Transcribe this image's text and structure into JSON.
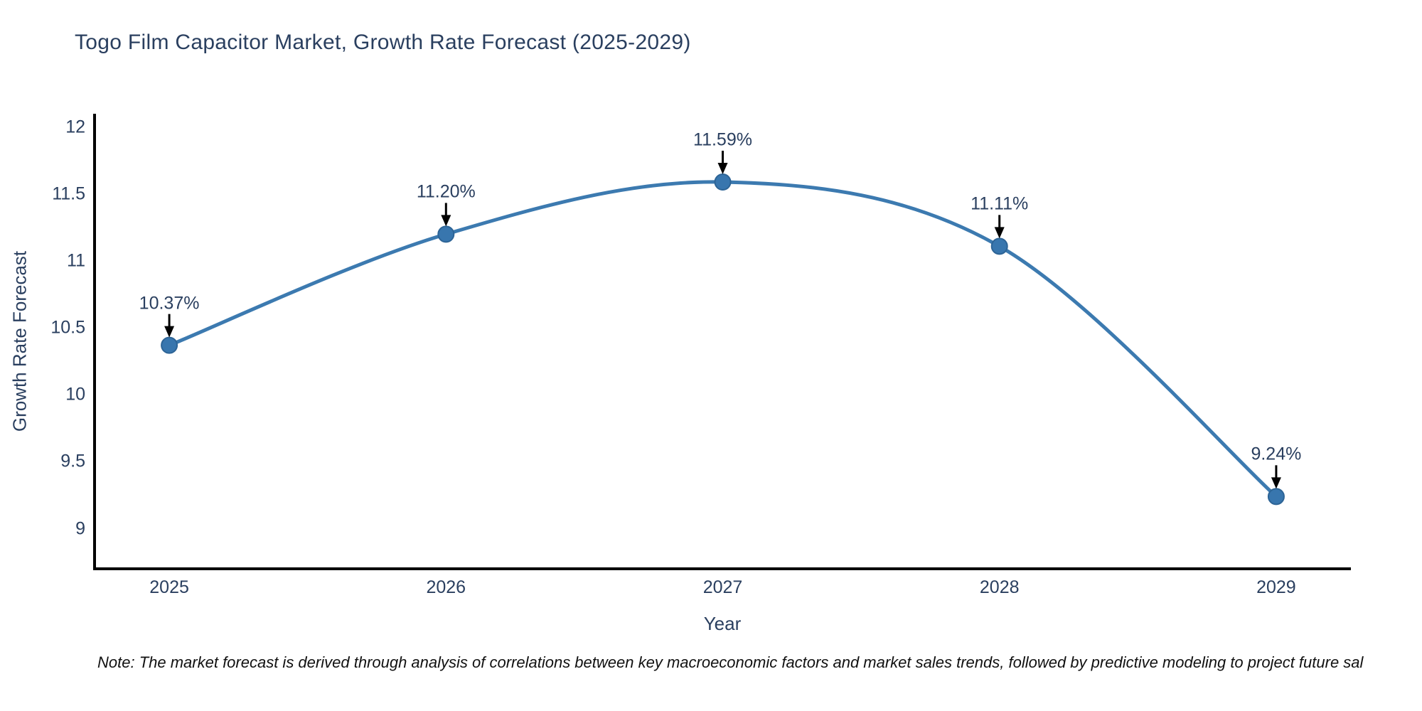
{
  "title": "Togo Film Capacitor Market, Growth Rate Forecast (2025-2029)",
  "note": "Note: The market forecast is derived through analysis of correlations between key macroeconomic factors and market sales trends, followed by predictive modeling to project future sal",
  "chart_data": {
    "type": "line",
    "line_shape": "spline",
    "title": "Togo Film Capacitor Market, Growth Rate Forecast (2025-2029)",
    "xlabel": "Year",
    "ylabel": "Growth Rate Forecast",
    "x": [
      2025,
      2026,
      2027,
      2028,
      2029
    ],
    "values": [
      10.37,
      11.2,
      11.59,
      11.11,
      9.24
    ],
    "point_labels": [
      "10.37%",
      "11.20%",
      "11.59%",
      "11.11%",
      "9.24%"
    ],
    "yticks": [
      9,
      9.5,
      10,
      10.5,
      11,
      11.5,
      12
    ],
    "xlim": [
      2024.73,
      2029.27
    ],
    "ylim": [
      8.7,
      12.1
    ],
    "grid": false,
    "legend": "none",
    "colors": {
      "line": "#3c7ab0",
      "marker_fill": "#3876ae",
      "marker_edge": "#2d6496",
      "arrow": "#000000",
      "axis_line": "#000000",
      "text": "#2a3f5f",
      "note_text": "#111111",
      "background": "#ffffff"
    }
  }
}
